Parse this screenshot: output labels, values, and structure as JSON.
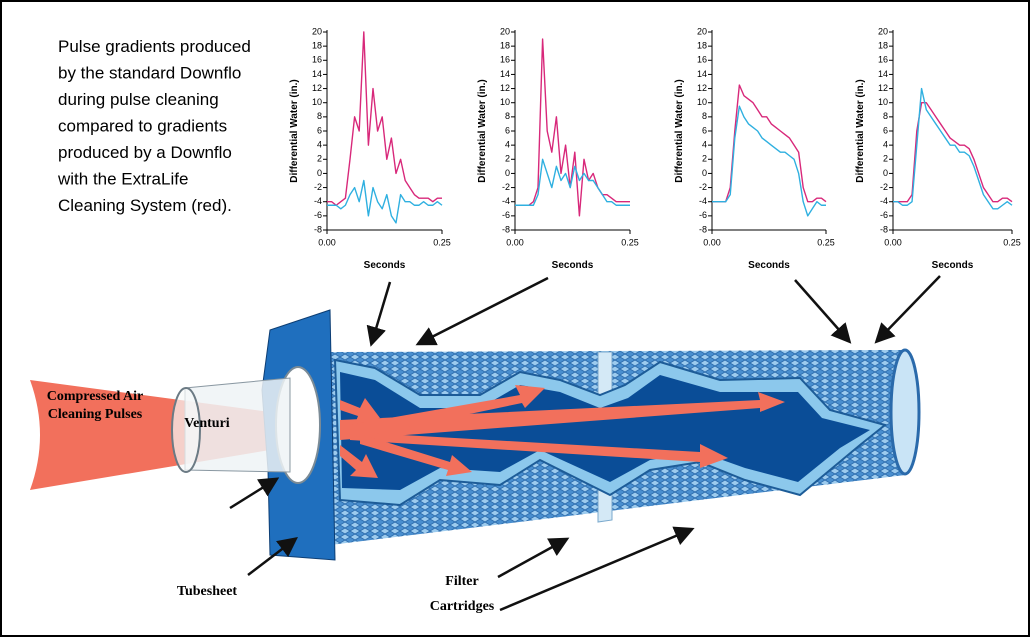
{
  "caption": [
    "Pulse gradients produced",
    "by the standard Downflo",
    "during pulse cleaning",
    "compared to gradients",
    "produced by a Downflo",
    "with the ExtraLife",
    "Cleaning System (red)."
  ],
  "labels": {
    "air": [
      "Compressed Air",
      "Cleaning Pulses"
    ],
    "venturi": "Venturi",
    "tubesheet": "Tubesheet",
    "cartridges": [
      "Filter",
      "Cartridges"
    ]
  },
  "chart_data": [
    {
      "type": "line",
      "y_label": "Differential Water (in.)",
      "x_label": "Seconds",
      "x": [
        0,
        0.01,
        0.02,
        0.03,
        0.04,
        0.05,
        0.06,
        0.07,
        0.08,
        0.09,
        0.1,
        0.11,
        0.12,
        0.13,
        0.14,
        0.15,
        0.16,
        0.17,
        0.18,
        0.19,
        0.2,
        0.21,
        0.22,
        0.23,
        0.24,
        0.25
      ],
      "xlim": [
        0,
        0.25
      ],
      "xticks": [
        {
          "value": 0,
          "label": "0.00"
        },
        {
          "value": 0.25,
          "label": "0.25"
        }
      ],
      "ylim": [
        -8,
        20
      ],
      "yticks": [
        -8,
        -6,
        -4,
        -2,
        0,
        2,
        4,
        6,
        8,
        10,
        12,
        14,
        16,
        18,
        20
      ],
      "series": [
        {
          "color": "#d8287a",
          "values": [
            -4,
            -4,
            -4.5,
            -4,
            -3.5,
            2,
            8,
            6,
            20,
            4,
            12,
            6,
            8,
            2,
            5,
            0,
            2,
            -1,
            -2,
            -3,
            -3.5,
            -3.5,
            -3.5,
            -4,
            -3.5,
            -3.5
          ]
        },
        {
          "color": "#2fb0e0",
          "values": [
            -4.5,
            -4.5,
            -4.5,
            -5,
            -4.5,
            -3,
            -2,
            -4,
            -1,
            -6,
            -2,
            -4,
            -5,
            -3,
            -6,
            -7,
            -3,
            -4,
            -4,
            -4.5,
            -4.5,
            -4,
            -4.5,
            -4.5,
            -4,
            -4.5
          ]
        }
      ]
    },
    {
      "type": "line",
      "y_label": "Differential Water (in.)",
      "x_label": "Seconds",
      "x": [
        0,
        0.01,
        0.02,
        0.03,
        0.04,
        0.05,
        0.06,
        0.07,
        0.08,
        0.09,
        0.1,
        0.11,
        0.12,
        0.13,
        0.14,
        0.15,
        0.16,
        0.17,
        0.18,
        0.19,
        0.2,
        0.21,
        0.22,
        0.23,
        0.24,
        0.25
      ],
      "xlim": [
        0,
        0.25
      ],
      "xticks": [
        {
          "value": 0,
          "label": "0.00"
        },
        {
          "value": 0.25,
          "label": "0.25"
        }
      ],
      "ylim": [
        -8,
        20
      ],
      "yticks": [
        -8,
        -6,
        -4,
        -2,
        0,
        2,
        4,
        6,
        8,
        10,
        12,
        14,
        16,
        18,
        20
      ],
      "series": [
        {
          "color": "#d8287a",
          "values": [
            -4.5,
            -4.5,
            -4.5,
            -4.5,
            -4,
            -2,
            19,
            6,
            3,
            8,
            0,
            4,
            -2,
            3,
            -6,
            2,
            -1,
            0,
            -2,
            -3,
            -3,
            -3.5,
            -4,
            -4,
            -4,
            -4
          ]
        },
        {
          "color": "#2fb0e0",
          "values": [
            -4.5,
            -4.5,
            -4.5,
            -4.5,
            -4.5,
            -3,
            2,
            0,
            -2,
            1,
            -1,
            0,
            -2,
            1,
            -1,
            0,
            -1,
            -1,
            -2,
            -3,
            -4,
            -4,
            -4.5,
            -4.5,
            -4.5,
            -4.5
          ]
        }
      ]
    },
    {
      "type": "line",
      "y_label": "Differential Water (in.)",
      "x_label": "Seconds",
      "x": [
        0,
        0.01,
        0.02,
        0.03,
        0.04,
        0.05,
        0.06,
        0.07,
        0.08,
        0.09,
        0.1,
        0.11,
        0.12,
        0.13,
        0.14,
        0.15,
        0.16,
        0.17,
        0.18,
        0.19,
        0.2,
        0.21,
        0.22,
        0.23,
        0.24,
        0.25
      ],
      "xlim": [
        0,
        0.25
      ],
      "xticks": [
        {
          "value": 0,
          "label": "0.00"
        },
        {
          "value": 0.25,
          "label": "0.25"
        }
      ],
      "ylim": [
        -8,
        20
      ],
      "yticks": [
        -8,
        -6,
        -4,
        -2,
        0,
        2,
        4,
        6,
        8,
        10,
        12,
        14,
        16,
        18,
        20
      ],
      "series": [
        {
          "color": "#d8287a",
          "values": [
            -4,
            -4,
            -4,
            -4,
            -2,
            6,
            12.5,
            11,
            10.5,
            10,
            9,
            8,
            8,
            7,
            6.5,
            6,
            5.5,
            5,
            4,
            3,
            -2,
            -4,
            -4,
            -3.5,
            -3.5,
            -4
          ]
        },
        {
          "color": "#2fb0e0",
          "values": [
            -4,
            -4,
            -4,
            -4,
            -3,
            5,
            9.5,
            8,
            7,
            6.5,
            6,
            5,
            4.5,
            4,
            3.5,
            3,
            3,
            2.5,
            2,
            0,
            -4,
            -6,
            -5,
            -4,
            -4.5,
            -4.5
          ]
        }
      ]
    },
    {
      "type": "line",
      "y_label": "Differential Water (in.)",
      "x_label": "Seconds",
      "x": [
        0,
        0.01,
        0.02,
        0.03,
        0.04,
        0.05,
        0.06,
        0.07,
        0.08,
        0.09,
        0.1,
        0.11,
        0.12,
        0.13,
        0.14,
        0.15,
        0.16,
        0.17,
        0.18,
        0.19,
        0.2,
        0.21,
        0.22,
        0.23,
        0.24,
        0.25
      ],
      "xlim": [
        0,
        0.25
      ],
      "xticks": [
        {
          "value": 0,
          "label": "0.00"
        },
        {
          "value": 0.25,
          "label": "0.25"
        }
      ],
      "ylim": [
        -8,
        20
      ],
      "yticks": [
        -8,
        -6,
        -4,
        -2,
        0,
        2,
        4,
        6,
        8,
        10,
        12,
        14,
        16,
        18,
        20
      ],
      "series": [
        {
          "color": "#d8287a",
          "values": [
            -4,
            -4,
            -4,
            -4,
            -3,
            6,
            10,
            10,
            9,
            8,
            7,
            6,
            5,
            4.5,
            4,
            4,
            3.5,
            2,
            0,
            -2,
            -3,
            -4,
            -4,
            -3.5,
            -3.5,
            -4
          ]
        },
        {
          "color": "#2fb0e0",
          "values": [
            -4,
            -4,
            -4.5,
            -4.5,
            -4,
            4,
            12,
            9,
            8,
            7,
            6,
            5,
            4,
            4,
            3,
            3,
            2.5,
            1,
            -1,
            -3,
            -4,
            -5,
            -5,
            -4.5,
            -4,
            -4.5
          ]
        }
      ]
    }
  ]
}
